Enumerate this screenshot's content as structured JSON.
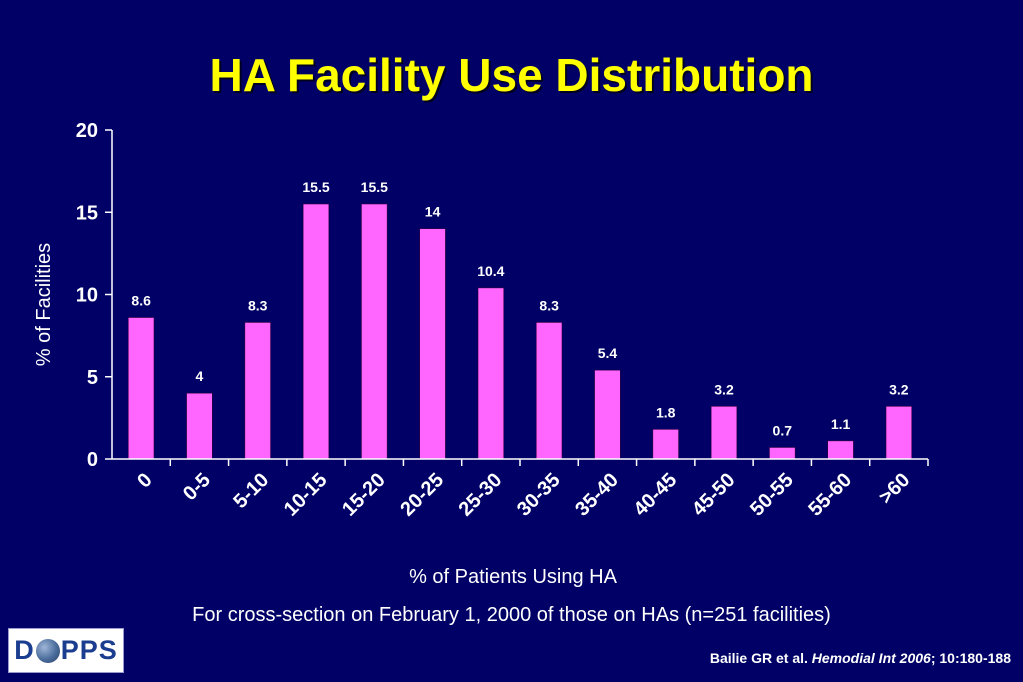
{
  "slide": {
    "title": "HA Facility Use Distribution",
    "caption": "For cross-section on February 1, 2000 of those on HAs (n=251 facilities)",
    "citation": {
      "authors": "Bailie GR et al. ",
      "journal": "Hemodial Int 2006",
      "ref": "; 10:180-188"
    },
    "logo": {
      "left": "D",
      "right": "PPS",
      "globe_icon": "globe-icon"
    },
    "colors": {
      "background": "#000066",
      "title": "#ffff00",
      "bar": "#ff66ff",
      "text": "#ffffff"
    }
  },
  "chart_data": {
    "type": "bar",
    "title": "HA Facility Use Distribution",
    "xlabel": "% of Patients Using HA",
    "ylabel": "% of Facilities",
    "ylim": [
      0,
      20
    ],
    "yticks": [
      0,
      5,
      10,
      15,
      20
    ],
    "grid": false,
    "categories": [
      "0",
      "0-5",
      "5-10",
      "10-15",
      "15-20",
      "20-25",
      "25-30",
      "30-35",
      "35-40",
      "40-45",
      "45-50",
      "50-55",
      "55-60",
      ">60"
    ],
    "values": [
      8.6,
      4,
      8.3,
      15.5,
      15.5,
      14,
      10.4,
      8.3,
      5.4,
      1.8,
      3.2,
      0.7,
      1.1,
      3.2
    ],
    "value_labels": [
      "8.6",
      "4",
      "8.3",
      "15.5",
      "15.5",
      "14",
      "10.4",
      "8.3",
      "5.4",
      "1.8",
      "3.2",
      "0.7",
      "1.1",
      "3.2"
    ]
  }
}
